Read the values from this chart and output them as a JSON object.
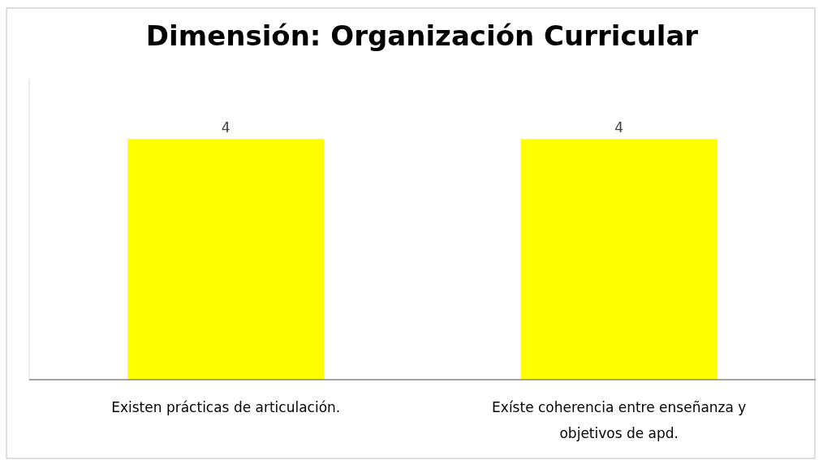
{
  "chart_data": {
    "type": "bar",
    "title": "Dimensión: Organización Curricular",
    "categories": [
      "Existen prácticas de articulación.",
      "Exíste coherencia entre enseñanza y objetivos de apd."
    ],
    "values": [
      4,
      4
    ],
    "color": "#ffff00",
    "ylim": [
      0,
      5
    ],
    "data_labels": true,
    "grid": false
  }
}
